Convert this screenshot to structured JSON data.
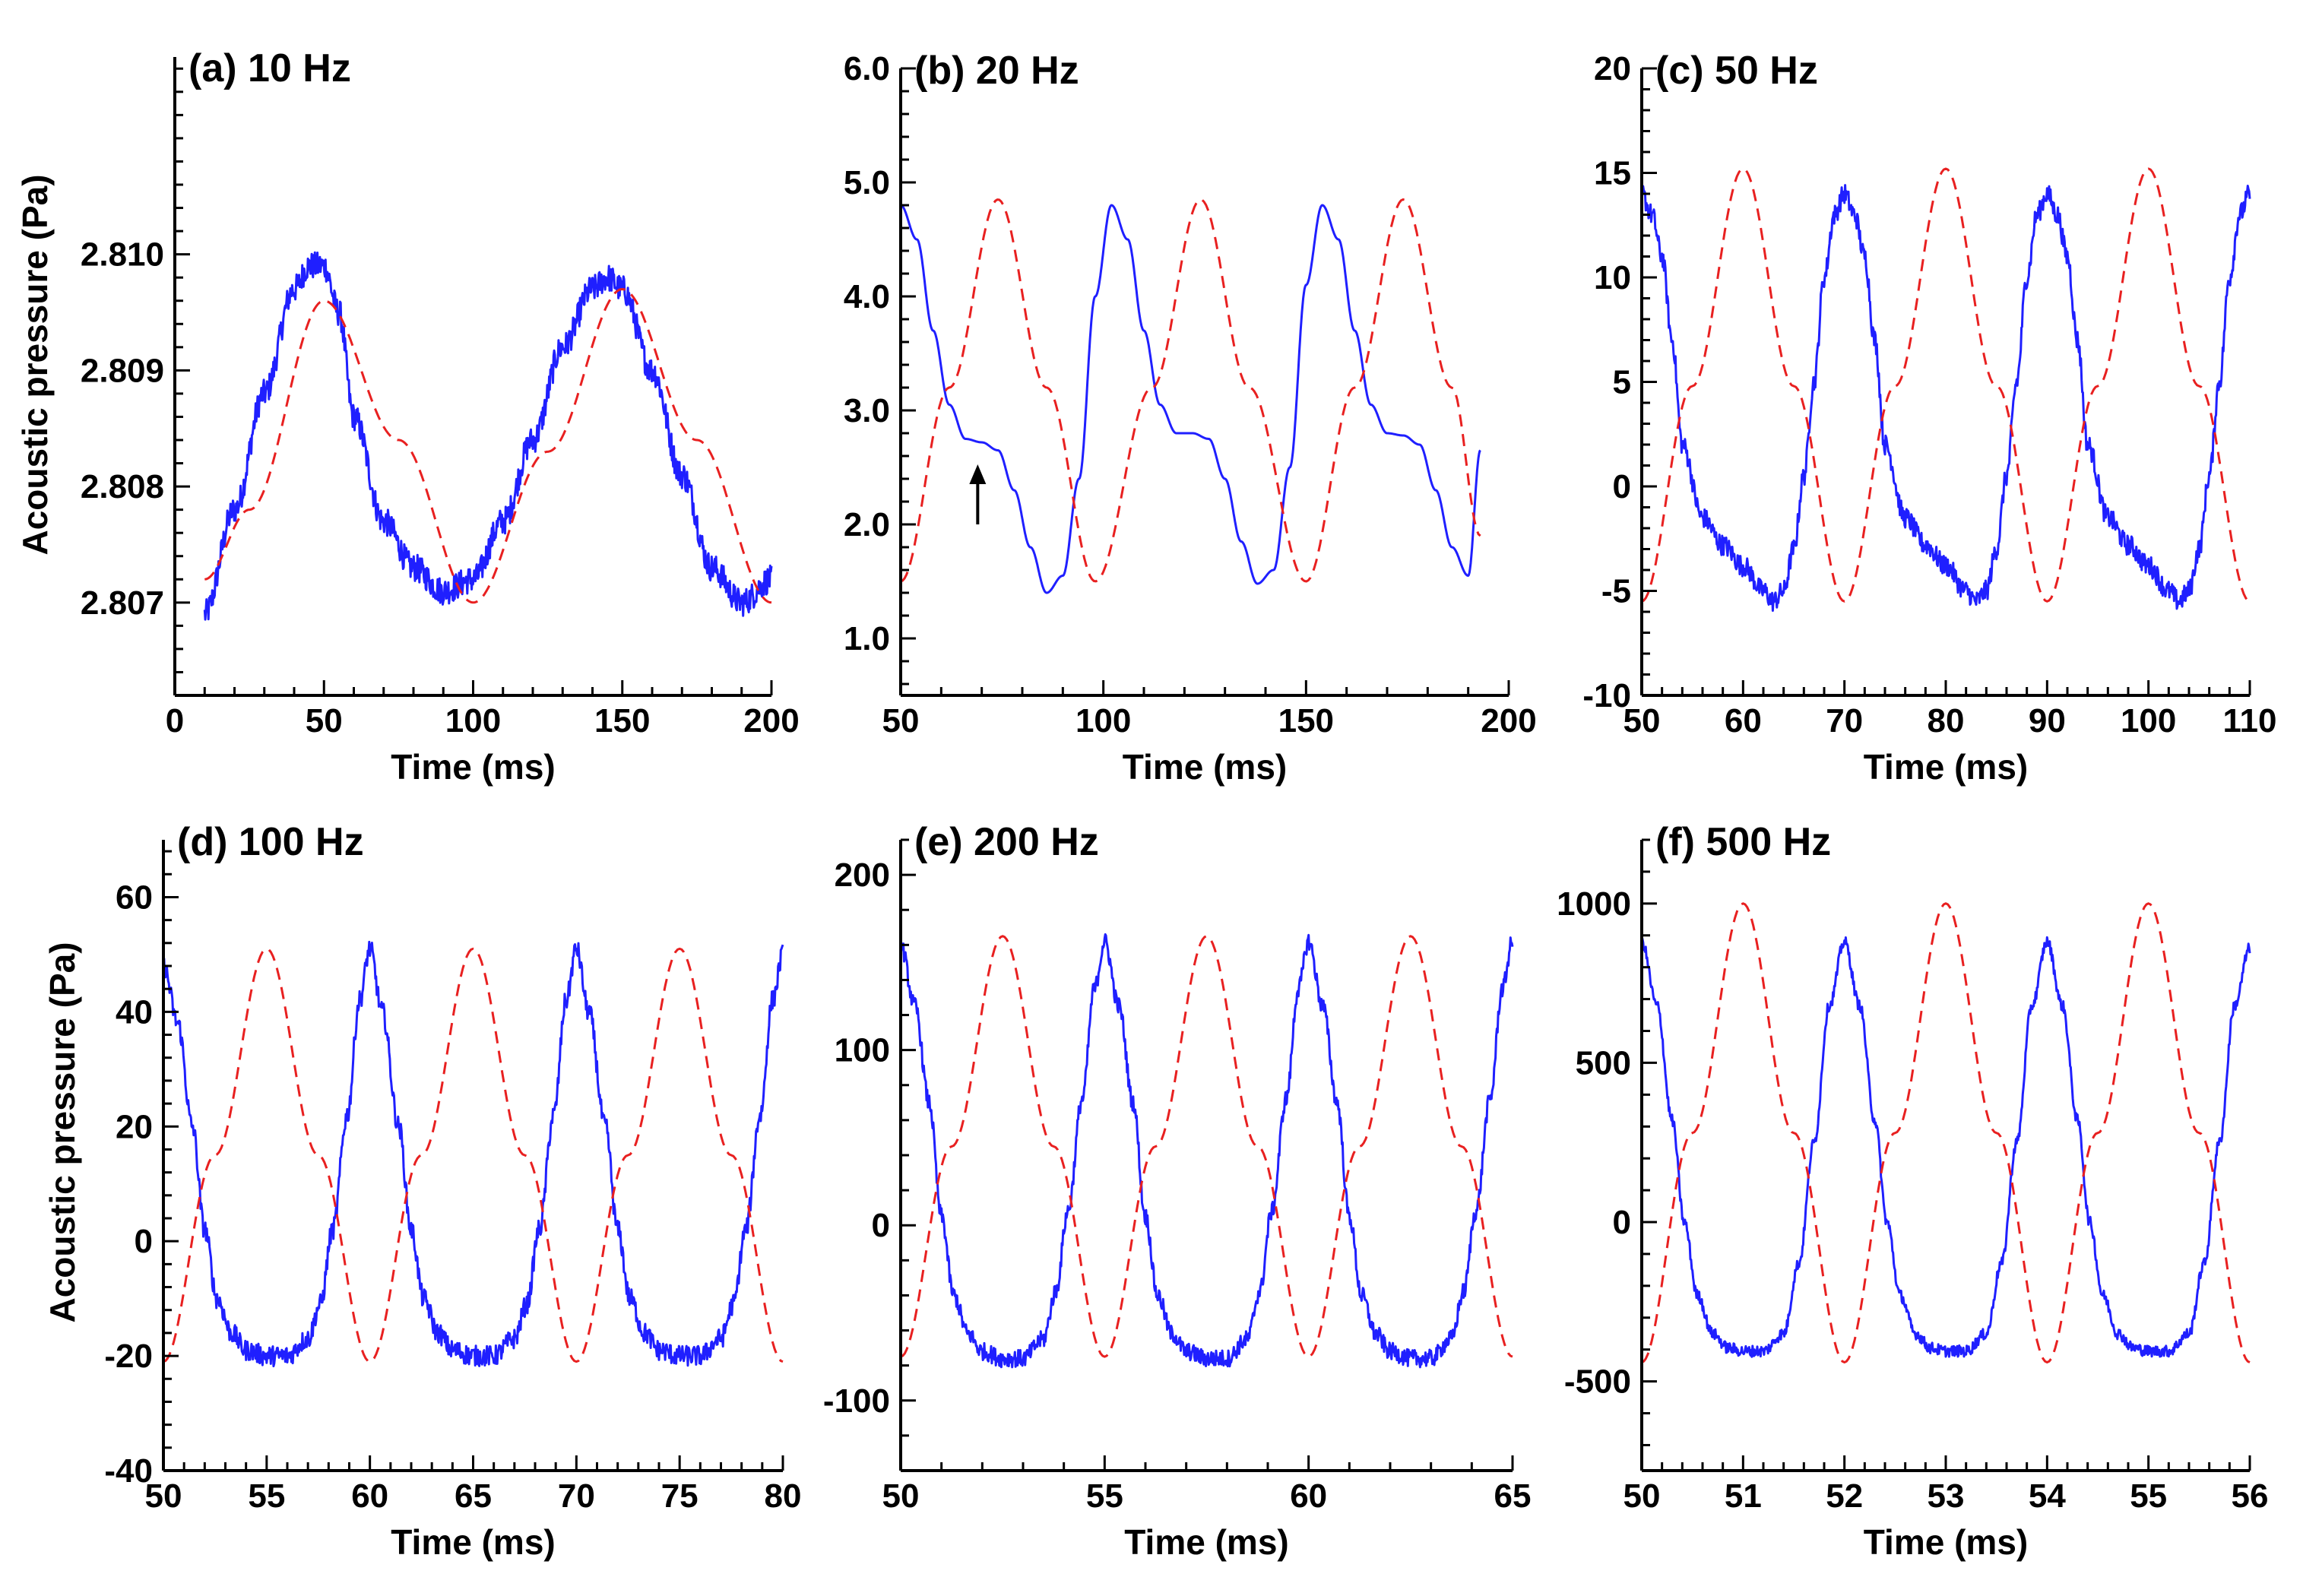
{
  "figure": {
    "y_axis_label": "Acoustic pressure (Pa)",
    "x_axis_label": "Time (ms)"
  },
  "colors": {
    "measured": "#1f1fff",
    "reference": "#e82020",
    "axis": "#000000"
  },
  "chart_data": [
    {
      "id": "a",
      "type": "line",
      "title": "(a) 10 Hz",
      "xlabel": "Time (ms)",
      "ylabel": "Acoustic pressure (Pa)",
      "xlim": [
        0,
        200
      ],
      "ylim": [
        2.8062,
        2.8117
      ],
      "xticks": [
        0,
        50,
        100,
        150,
        200
      ],
      "yticks": [
        2.807,
        2.808,
        2.809,
        2.81
      ],
      "xtick_labels": [
        "0",
        "50",
        "100",
        "150",
        "200"
      ],
      "ytick_labels": [
        "2.807",
        "2.808",
        "2.809",
        "2.810"
      ],
      "series": [
        {
          "name": "measured",
          "style": "solid",
          "noise": 0.00012,
          "x": [
            10,
            20,
            30,
            40,
            45,
            50,
            55,
            60,
            70,
            80,
            90,
            100,
            110,
            120,
            130,
            140,
            145,
            150,
            160,
            170,
            180,
            190,
            200
          ],
          "y": [
            2.8069,
            2.8078,
            2.8088,
            2.8097,
            2.8099,
            2.8099,
            2.8095,
            2.8086,
            2.8077,
            2.8073,
            2.8071,
            2.8072,
            2.8077,
            2.8084,
            2.8092,
            2.8097,
            2.8098,
            2.8097,
            2.809,
            2.8081,
            2.8073,
            2.807,
            2.8072
          ]
        },
        {
          "name": "reference",
          "style": "dashed",
          "x": [
            10,
            25,
            50,
            75,
            100,
            125,
            150,
            175,
            200
          ],
          "y": [
            2.8072,
            2.8078,
            2.8096,
            2.8084,
            2.807,
            2.8083,
            2.8097,
            2.8084,
            2.807
          ]
        }
      ]
    },
    {
      "id": "b",
      "type": "line",
      "title": "(b) 20 Hz",
      "xlabel": "Time (ms)",
      "ylabel": "",
      "xlim": [
        50,
        200
      ],
      "ylim": [
        0.5,
        6.0
      ],
      "xticks": [
        50,
        100,
        150,
        200
      ],
      "yticks": [
        1,
        2,
        3,
        4,
        5,
        6
      ],
      "xtick_labels": [
        "50",
        "100",
        "150",
        "200"
      ],
      "ytick_labels": [
        "1.0",
        "2.0",
        "3.0",
        "4.0",
        "5.0",
        "6.0"
      ],
      "annotations": [
        {
          "type": "arrow",
          "x": 69,
          "y_from": 2.0,
          "y_to": 2.5
        }
      ],
      "series": [
        {
          "name": "measured",
          "style": "solid",
          "noise": 0,
          "x": [
            50,
            54,
            58,
            62,
            66,
            70,
            74,
            78,
            82,
            86,
            90,
            94,
            98,
            102,
            106,
            110,
            114,
            118,
            122,
            126,
            130,
            134,
            138,
            142,
            146,
            150,
            154,
            158,
            162,
            166,
            170,
            174,
            178,
            182,
            186,
            190,
            193
          ],
          "y": [
            4.8,
            4.5,
            3.7,
            3.05,
            2.75,
            2.72,
            2.65,
            2.3,
            1.8,
            1.4,
            1.55,
            2.4,
            4.0,
            4.8,
            4.5,
            3.7,
            3.05,
            2.8,
            2.8,
            2.75,
            2.4,
            1.85,
            1.48,
            1.6,
            2.5,
            4.1,
            4.8,
            4.5,
            3.7,
            3.05,
            2.8,
            2.78,
            2.7,
            2.3,
            1.8,
            1.55,
            2.65
          ]
        },
        {
          "name": "reference",
          "style": "dashed",
          "x": [
            50,
            62,
            74,
            86,
            98,
            112,
            124,
            136,
            150,
            162,
            174,
            186,
            193
          ],
          "y": [
            1.5,
            3.2,
            4.85,
            3.2,
            1.5,
            3.2,
            4.85,
            3.2,
            1.5,
            3.2,
            4.85,
            3.2,
            1.9
          ]
        }
      ]
    },
    {
      "id": "c",
      "type": "line",
      "title": "(c) 50 Hz",
      "xlabel": "Time (ms)",
      "ylabel": "",
      "xlim": [
        50,
        110
      ],
      "ylim": [
        -10,
        20
      ],
      "xticks": [
        50,
        60,
        70,
        80,
        90,
        100,
        110
      ],
      "yticks": [
        -10,
        -5,
        0,
        5,
        10,
        15,
        20
      ],
      "xtick_labels": [
        "50",
        "60",
        "70",
        "80",
        "90",
        "100",
        "110"
      ],
      "ytick_labels": [
        "-10",
        "-5",
        "0",
        "5",
        "10",
        "15",
        "20"
      ],
      "series": [
        {
          "name": "measured",
          "style": "solid",
          "noise": 0.5,
          "x": [
            50,
            51,
            52,
            53,
            54,
            56,
            58,
            60,
            62,
            63,
            64,
            65,
            66,
            67,
            68,
            69,
            70,
            71,
            72,
            73,
            74,
            76,
            78,
            80,
            82,
            83,
            84,
            85,
            86,
            87,
            88,
            89,
            90,
            91,
            92,
            93,
            94,
            96,
            98,
            100,
            102,
            103,
            104,
            105,
            106,
            107,
            108,
            109,
            110
          ],
          "y": [
            14,
            13,
            11,
            7,
            2,
            -1.5,
            -2.8,
            -3.8,
            -5,
            -5.5,
            -5,
            -3,
            0.5,
            5,
            10,
            13,
            14,
            13,
            11,
            7,
            2,
            -1.5,
            -2.8,
            -3.8,
            -5,
            -5.5,
            -5,
            -3,
            0.5,
            5,
            10,
            13,
            14,
            13,
            11,
            7,
            2,
            -1.5,
            -2.8,
            -3.8,
            -5,
            -5.5,
            -5,
            -3,
            0.5,
            5,
            10,
            13,
            14
          ]
        },
        {
          "name": "reference",
          "style": "dashed",
          "x": [
            50,
            55,
            60,
            65,
            70,
            75,
            80,
            85,
            90,
            95,
            100,
            105,
            110
          ],
          "y": [
            -5.5,
            4.8,
            15.2,
            4.8,
            -5.5,
            4.8,
            15.2,
            4.8,
            -5.5,
            4.8,
            15.2,
            4.8,
            -5.5
          ]
        }
      ]
    },
    {
      "id": "d",
      "type": "line",
      "title": "(d) 100 Hz",
      "xlabel": "Time (ms)",
      "ylabel": "Acoustic pressure (Pa)",
      "xlim": [
        50,
        80
      ],
      "ylim": [
        -40,
        70
      ],
      "xticks": [
        50,
        55,
        60,
        65,
        70,
        75,
        80
      ],
      "yticks": [
        -40,
        -20,
        0,
        20,
        40,
        60
      ],
      "xtick_labels": [
        "50",
        "55",
        "60",
        "65",
        "70",
        "75",
        "80"
      ],
      "ytick_labels": [
        "-40",
        "-20",
        "0",
        "20",
        "40",
        "60"
      ],
      "series": [
        {
          "name": "measured",
          "style": "solid",
          "noise": 1.8,
          "x": [
            50,
            50.7,
            51.4,
            52,
            52.6,
            53.3,
            54,
            55,
            56,
            57,
            57.6,
            58.2,
            58.9,
            59.5,
            60,
            60.6,
            61.4,
            62,
            62.6,
            63.3,
            64,
            65,
            66,
            67,
            67.6,
            68.2,
            68.9,
            69.5,
            70,
            70.6,
            71.4,
            72,
            72.6,
            73.3,
            74,
            75,
            76,
            77,
            77.6,
            78.2,
            78.9,
            79.5,
            80
          ],
          "y": [
            48,
            38,
            20,
            2,
            -10,
            -16,
            -19,
            -20,
            -20,
            -17,
            -11,
            2,
            22,
            42,
            51,
            40,
            20,
            2,
            -10,
            -16,
            -19,
            -20,
            -20,
            -17,
            -11,
            2,
            22,
            42,
            51,
            40,
            20,
            2,
            -10,
            -16,
            -19,
            -20,
            -20,
            -17,
            -11,
            2,
            22,
            42,
            50
          ]
        },
        {
          "name": "reference",
          "style": "dashed",
          "x": [
            50,
            52.5,
            55,
            57.5,
            60,
            62.5,
            65,
            67.5,
            70,
            72.5,
            75,
            77.5,
            80
          ],
          "y": [
            -21,
            15,
            51,
            15,
            -21,
            15,
            51,
            15,
            -21,
            15,
            51,
            15,
            -21
          ]
        }
      ]
    },
    {
      "id": "e",
      "type": "line",
      "title": "(e) 200 Hz",
      "xlabel": "Time (ms)",
      "ylabel": "",
      "xlim": [
        50,
        65
      ],
      "ylim": [
        -140,
        220
      ],
      "xticks": [
        50,
        55,
        60,
        65
      ],
      "yticks": [
        -100,
        0,
        100,
        200
      ],
      "xtick_labels": [
        "50",
        "55",
        "60",
        "65"
      ],
      "ytick_labels": [
        "-100",
        "0",
        "100",
        "200"
      ],
      "series": [
        {
          "name": "measured",
          "style": "solid",
          "noise": 5,
          "x": [
            50,
            50.35,
            50.7,
            51,
            51.3,
            51.65,
            52,
            52.5,
            53,
            53.5,
            53.8,
            54.1,
            54.45,
            54.75,
            55,
            55.35,
            55.7,
            56,
            56.3,
            56.65,
            57,
            57.5,
            58,
            58.5,
            58.8,
            59.1,
            59.45,
            59.75,
            60,
            60.35,
            60.7,
            61,
            61.3,
            61.65,
            62,
            62.5,
            63,
            63.5,
            63.8,
            64.1,
            64.45,
            64.75,
            65
          ],
          "y": [
            160,
            125,
            70,
            5,
            -40,
            -62,
            -72,
            -76,
            -76,
            -65,
            -38,
            8,
            72,
            135,
            162,
            125,
            70,
            5,
            -40,
            -62,
            -72,
            -76,
            -76,
            -65,
            -38,
            8,
            72,
            135,
            162,
            125,
            70,
            5,
            -40,
            -62,
            -72,
            -76,
            -76,
            -65,
            -38,
            8,
            72,
            135,
            162
          ]
        },
        {
          "name": "reference",
          "style": "dashed",
          "x": [
            50,
            51.25,
            52.5,
            53.75,
            55,
            56.25,
            57.5,
            58.75,
            60,
            61.25,
            62.5,
            63.75,
            65
          ],
          "y": [
            -75,
            45,
            165,
            45,
            -75,
            45,
            165,
            45,
            -75,
            45,
            165,
            45,
            -75
          ]
        }
      ]
    },
    {
      "id": "f",
      "type": "line",
      "title": "(f) 500 Hz",
      "xlabel": "Time (ms)",
      "ylabel": "",
      "xlim": [
        50,
        56
      ],
      "ylim": [
        -780,
        1200
      ],
      "xticks": [
        50,
        51,
        52,
        53,
        54,
        55,
        56
      ],
      "yticks": [
        -500,
        0,
        500,
        1000
      ],
      "xtick_labels": [
        "50",
        "51",
        "52",
        "53",
        "54",
        "55",
        "56"
      ],
      "ytick_labels": [
        "-500",
        "0",
        "500",
        "1000"
      ],
      "series": [
        {
          "name": "measured",
          "style": "solid",
          "noise": 18,
          "x": [
            50,
            50.15,
            50.3,
            50.42,
            50.55,
            50.7,
            50.85,
            51,
            51.2,
            51.4,
            51.55,
            51.7,
            51.85,
            52,
            52.15,
            52.3,
            52.42,
            52.55,
            52.7,
            52.85,
            53,
            53.2,
            53.4,
            53.55,
            53.7,
            53.85,
            54,
            54.15,
            54.3,
            54.42,
            54.55,
            54.7,
            54.85,
            55,
            55.2,
            55.4,
            55.55,
            55.7,
            55.85,
            56
          ],
          "y": [
            880,
            680,
            320,
            0,
            -230,
            -350,
            -395,
            -405,
            -405,
            -350,
            -130,
            250,
            680,
            880,
            680,
            320,
            0,
            -230,
            -350,
            -395,
            -405,
            -405,
            -350,
            -130,
            250,
            680,
            880,
            680,
            320,
            0,
            -230,
            -350,
            -395,
            -405,
            -405,
            -350,
            -130,
            250,
            680,
            860
          ]
        },
        {
          "name": "reference",
          "style": "dashed",
          "x": [
            50,
            50.5,
            51,
            51.5,
            52,
            52.5,
            53,
            53.5,
            54,
            54.5,
            55,
            55.5,
            56
          ],
          "y": [
            -440,
            280,
            1000,
            280,
            -440,
            280,
            1000,
            280,
            -440,
            280,
            1000,
            280,
            -440
          ]
        }
      ]
    }
  ]
}
